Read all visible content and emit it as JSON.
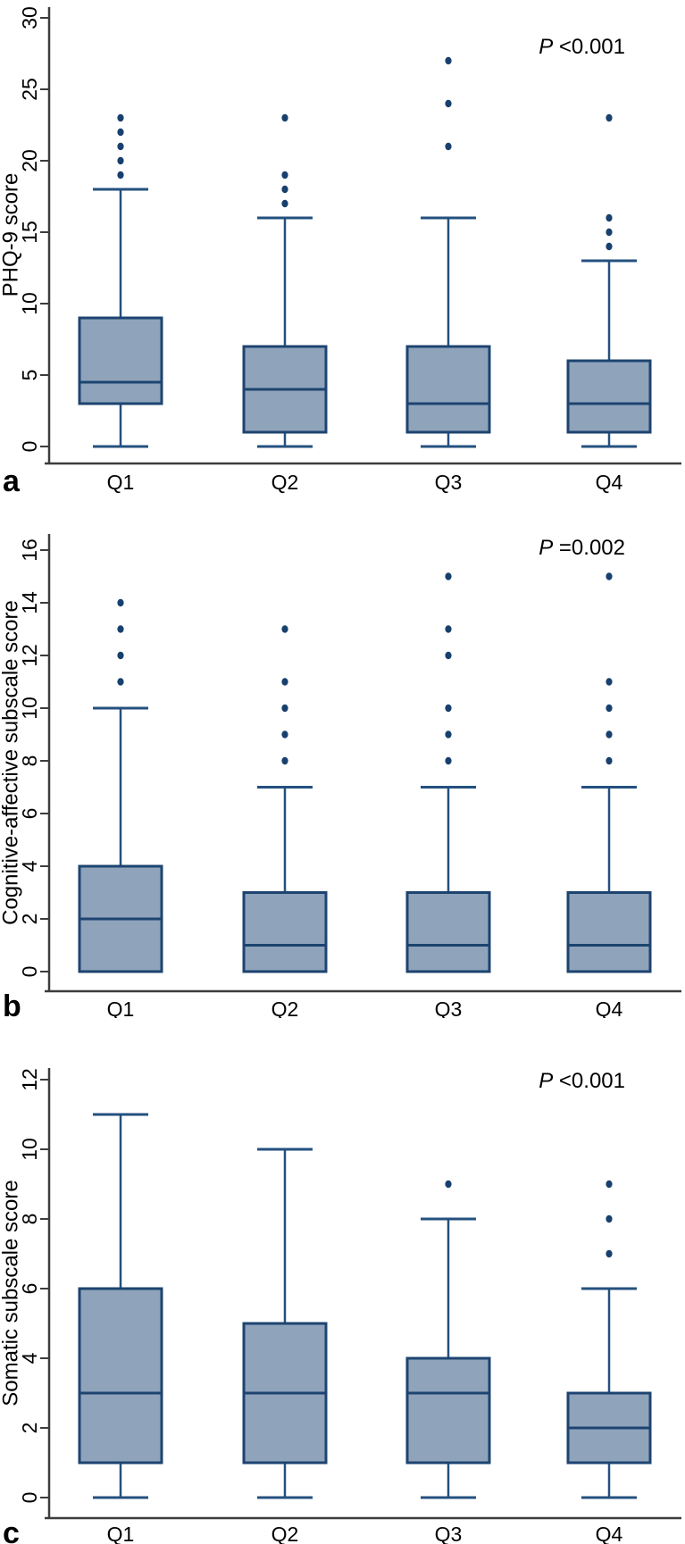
{
  "figure": {
    "description": "Three stacked box plots of depression scores by quartile",
    "panel_letters": [
      "a",
      "b",
      "c"
    ],
    "x_categories": [
      "Q1",
      "Q2",
      "Q3",
      "Q4"
    ]
  },
  "colors": {
    "box_fill": "#8fa3bb",
    "box_border": "#1d4470",
    "median_line": "#1d4470",
    "whisker": "#24507f",
    "outlier_dot": "#17406e",
    "axis": "#3c3c3c",
    "text": "#000000",
    "background": "#ffffff"
  },
  "chart_data": [
    {
      "type": "boxplot",
      "panel_label": "a",
      "p_value": "P <0.001",
      "xlabel": "",
      "ylabel": "PHQ-9 score",
      "ylim": [
        0,
        31
      ],
      "yticks": [
        0,
        5,
        10,
        15,
        20,
        25,
        30
      ],
      "categories": [
        "Q1",
        "Q2",
        "Q3",
        "Q4"
      ],
      "grid": false,
      "legend": null,
      "series": [
        {
          "category": "Q1",
          "whisker_low": 0,
          "q1": 3,
          "median": 4.5,
          "q3": 9,
          "whisker_high": 18,
          "outliers": [
            19,
            20,
            21,
            22,
            23
          ]
        },
        {
          "category": "Q2",
          "whisker_low": 0,
          "q1": 1,
          "median": 4,
          "q3": 7,
          "whisker_high": 16,
          "outliers": [
            17,
            18,
            19,
            23
          ]
        },
        {
          "category": "Q3",
          "whisker_low": 0,
          "q1": 1,
          "median": 3,
          "q3": 7,
          "whisker_high": 16,
          "outliers": [
            21,
            24,
            27
          ]
        },
        {
          "category": "Q4",
          "whisker_low": 0,
          "q1": 1,
          "median": 3,
          "q3": 6,
          "whisker_high": 13,
          "outliers": [
            14,
            15,
            16,
            23
          ]
        }
      ]
    },
    {
      "type": "boxplot",
      "panel_label": "b",
      "p_value": "P =0.002",
      "xlabel": "",
      "ylabel": "Cognitive-affective subscale score",
      "ylim": [
        0,
        16.5
      ],
      "yticks": [
        0,
        2,
        4,
        6,
        8,
        10,
        12,
        14,
        16
      ],
      "categories": [
        "Q1",
        "Q2",
        "Q3",
        "Q4"
      ],
      "grid": false,
      "legend": null,
      "series": [
        {
          "category": "Q1",
          "whisker_low": null,
          "q1": 0,
          "median": 2,
          "q3": 4,
          "whisker_high": 10,
          "outliers": [
            11,
            12,
            13,
            14
          ]
        },
        {
          "category": "Q2",
          "whisker_low": null,
          "q1": 0,
          "median": 1,
          "q3": 3,
          "whisker_high": 7,
          "outliers": [
            8,
            9,
            10,
            11,
            13
          ]
        },
        {
          "category": "Q3",
          "whisker_low": null,
          "q1": 0,
          "median": 1,
          "q3": 3,
          "whisker_high": 7,
          "outliers": [
            8,
            9,
            10,
            12,
            13,
            15
          ]
        },
        {
          "category": "Q4",
          "whisker_low": null,
          "q1": 0,
          "median": 1,
          "q3": 3,
          "whisker_high": 7,
          "outliers": [
            8,
            9,
            10,
            11,
            15
          ]
        }
      ]
    },
    {
      "type": "boxplot",
      "panel_label": "c",
      "p_value": "P <0.001",
      "xlabel": "",
      "ylabel": "Somatic subscale score",
      "ylim": [
        0,
        12.5
      ],
      "yticks": [
        0,
        2,
        4,
        6,
        8,
        10,
        12
      ],
      "categories": [
        "Q1",
        "Q2",
        "Q3",
        "Q4"
      ],
      "grid": false,
      "legend": null,
      "series": [
        {
          "category": "Q1",
          "whisker_low": 0,
          "q1": 1,
          "median": 3,
          "q3": 6,
          "whisker_high": 11,
          "outliers": []
        },
        {
          "category": "Q2",
          "whisker_low": 0,
          "q1": 1,
          "median": 3,
          "q3": 5,
          "whisker_high": 10,
          "outliers": []
        },
        {
          "category": "Q3",
          "whisker_low": 0,
          "q1": 1,
          "median": 3,
          "q3": 4,
          "whisker_high": 8,
          "outliers": [
            9
          ]
        },
        {
          "category": "Q4",
          "whisker_low": 0,
          "q1": 1,
          "median": 2,
          "q3": 3,
          "whisker_high": 6,
          "outliers": [
            7,
            8,
            9
          ]
        }
      ]
    }
  ]
}
